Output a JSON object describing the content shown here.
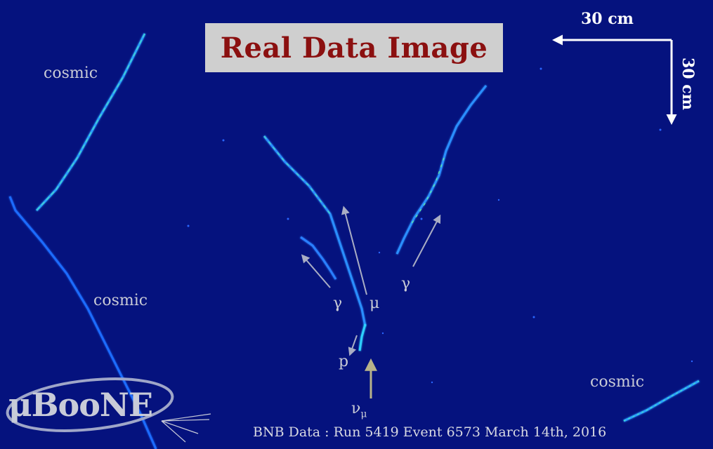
{
  "title": "Real Data Image",
  "scale": {
    "horizontal": "30 cm",
    "vertical": "30 cm"
  },
  "labels": {
    "cosmic_top_left": "cosmic",
    "cosmic_mid_left": "cosmic",
    "cosmic_bottom_right": "cosmic",
    "gamma_left": "γ",
    "mu": "μ",
    "gamma_right": "γ",
    "proton": "p",
    "neutrino": "ν",
    "neutrino_sub": "μ"
  },
  "logo": "μBooNE",
  "caption": "BNB Data : Run 5419  Event 6573  March 14th, 2016",
  "colors": {
    "background": "#05127e",
    "title_text": "#8b1010",
    "title_box": "#cfcfcf",
    "track": "#1f8cff",
    "track_hot": "#39e0c8",
    "arrow": "#a9adc4",
    "neutrino_arrow": "#b8b38a"
  }
}
